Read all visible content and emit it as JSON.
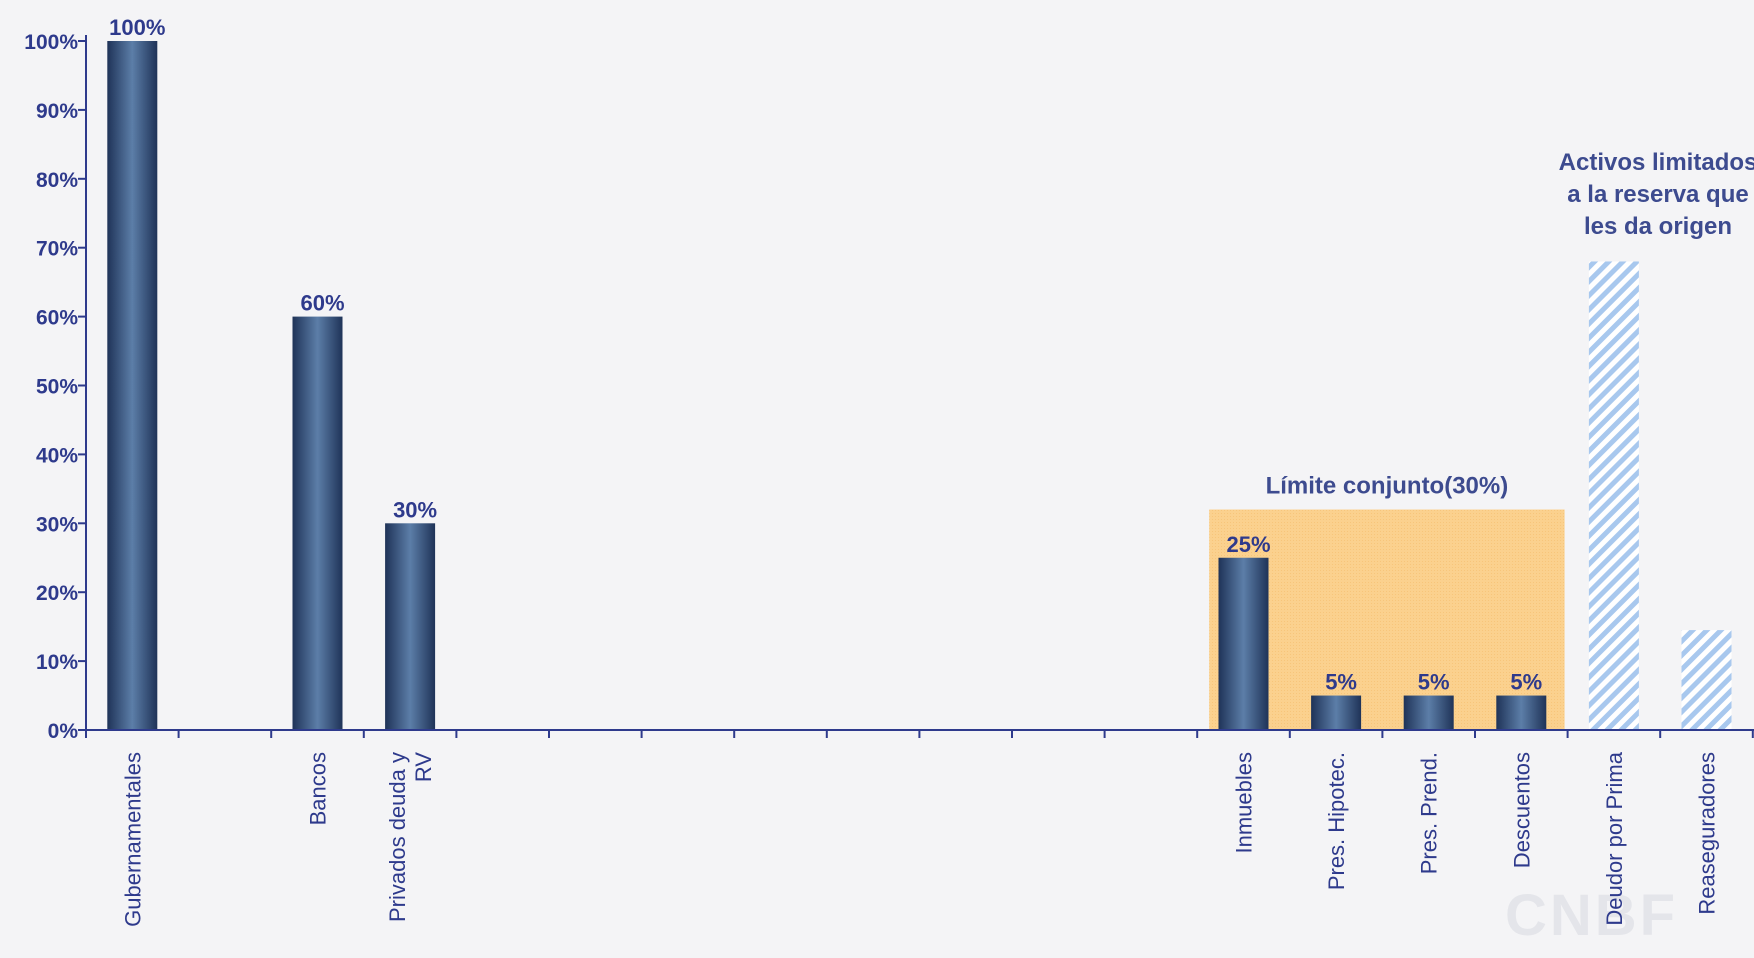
{
  "chart_data": {
    "type": "bar",
    "ylim": [
      0,
      100
    ],
    "yticks": [
      0,
      10,
      20,
      30,
      40,
      50,
      60,
      70,
      80,
      90,
      100
    ],
    "ytick_suffix": "%",
    "grid": false,
    "categories": [
      {
        "label": "Gubernamentales",
        "slot": 0,
        "value": 100,
        "value_label": "100%",
        "style": "solid"
      },
      {
        "label": "Bancos",
        "slot": 2,
        "value": 60,
        "value_label": "60%",
        "style": "solid"
      },
      {
        "label": "Privados deuda y RV",
        "lines": [
          "Privados deuda y",
          "RV"
        ],
        "slot": 3,
        "value": 30,
        "value_label": "30%",
        "style": "solid"
      },
      {
        "label": "Inmuebles",
        "slot": 12,
        "value": 25,
        "value_label": "25%",
        "style": "solid"
      },
      {
        "label": "Pres. Hipotec.",
        "slot": 13,
        "value": 5,
        "value_label": "5%",
        "style": "solid"
      },
      {
        "label": "Pres. Prend.",
        "slot": 14,
        "value": 5,
        "value_label": "5%",
        "style": "solid"
      },
      {
        "label": "Descuentos",
        "slot": 15,
        "value": 5,
        "value_label": "5%",
        "style": "solid"
      },
      {
        "label": "Deudor por Prima",
        "slot": 16,
        "value": 68,
        "value_label": "",
        "style": "hatched"
      },
      {
        "label": "Reaseguradores",
        "slot": 17,
        "value": 14.5,
        "value_label": "",
        "style": "hatched"
      }
    ],
    "slot_count": 18,
    "annotations": [
      {
        "id": "joint-limit",
        "text": "Límite conjunto(30%)",
        "region_slots": [
          12,
          15
        ],
        "value": 32
      },
      {
        "id": "limited-assets",
        "lines": [
          "Activos limitados",
          "a la reserva que",
          "les da origen"
        ]
      }
    ],
    "colors": {
      "bar_dark": "#1f3358",
      "bar_light": "#5c7ea8",
      "hatch": "#a8c8ee",
      "joint_region": "#fbd18e",
      "axis": "#2e3a8c",
      "text": "#2e3a8c"
    }
  },
  "watermark": "CNBF"
}
